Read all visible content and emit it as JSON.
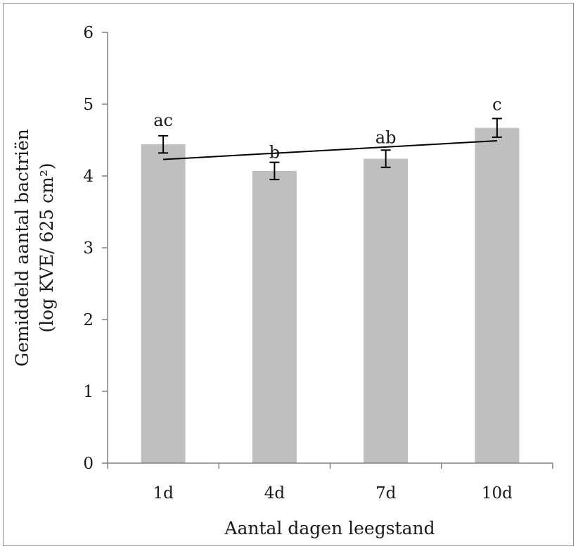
{
  "chart_data": {
    "type": "bar",
    "categories": [
      "1d",
      "4d",
      "7d",
      "10d"
    ],
    "values": [
      4.44,
      4.07,
      4.24,
      4.67
    ],
    "error": [
      0.12,
      0.12,
      0.12,
      0.13
    ],
    "significance_labels": [
      "ac",
      "b",
      "ab",
      "c"
    ],
    "trendline": {
      "start": 4.23,
      "end": 4.49
    },
    "xlabel": "Aantal dagen leegstand",
    "ylabel_line1": "Gemiddeld aantal bactriën",
    "ylabel_line2": "(log KVE/ 625 cm²)",
    "ylim": [
      0,
      6
    ],
    "yticks": [
      "0",
      "1",
      "2",
      "3",
      "4",
      "5",
      "6"
    ],
    "grid": false,
    "legend": "none",
    "colors": {
      "bar": "#bfbfbf",
      "axis": "#808080",
      "error": "#000000",
      "trend": "#000000"
    }
  }
}
